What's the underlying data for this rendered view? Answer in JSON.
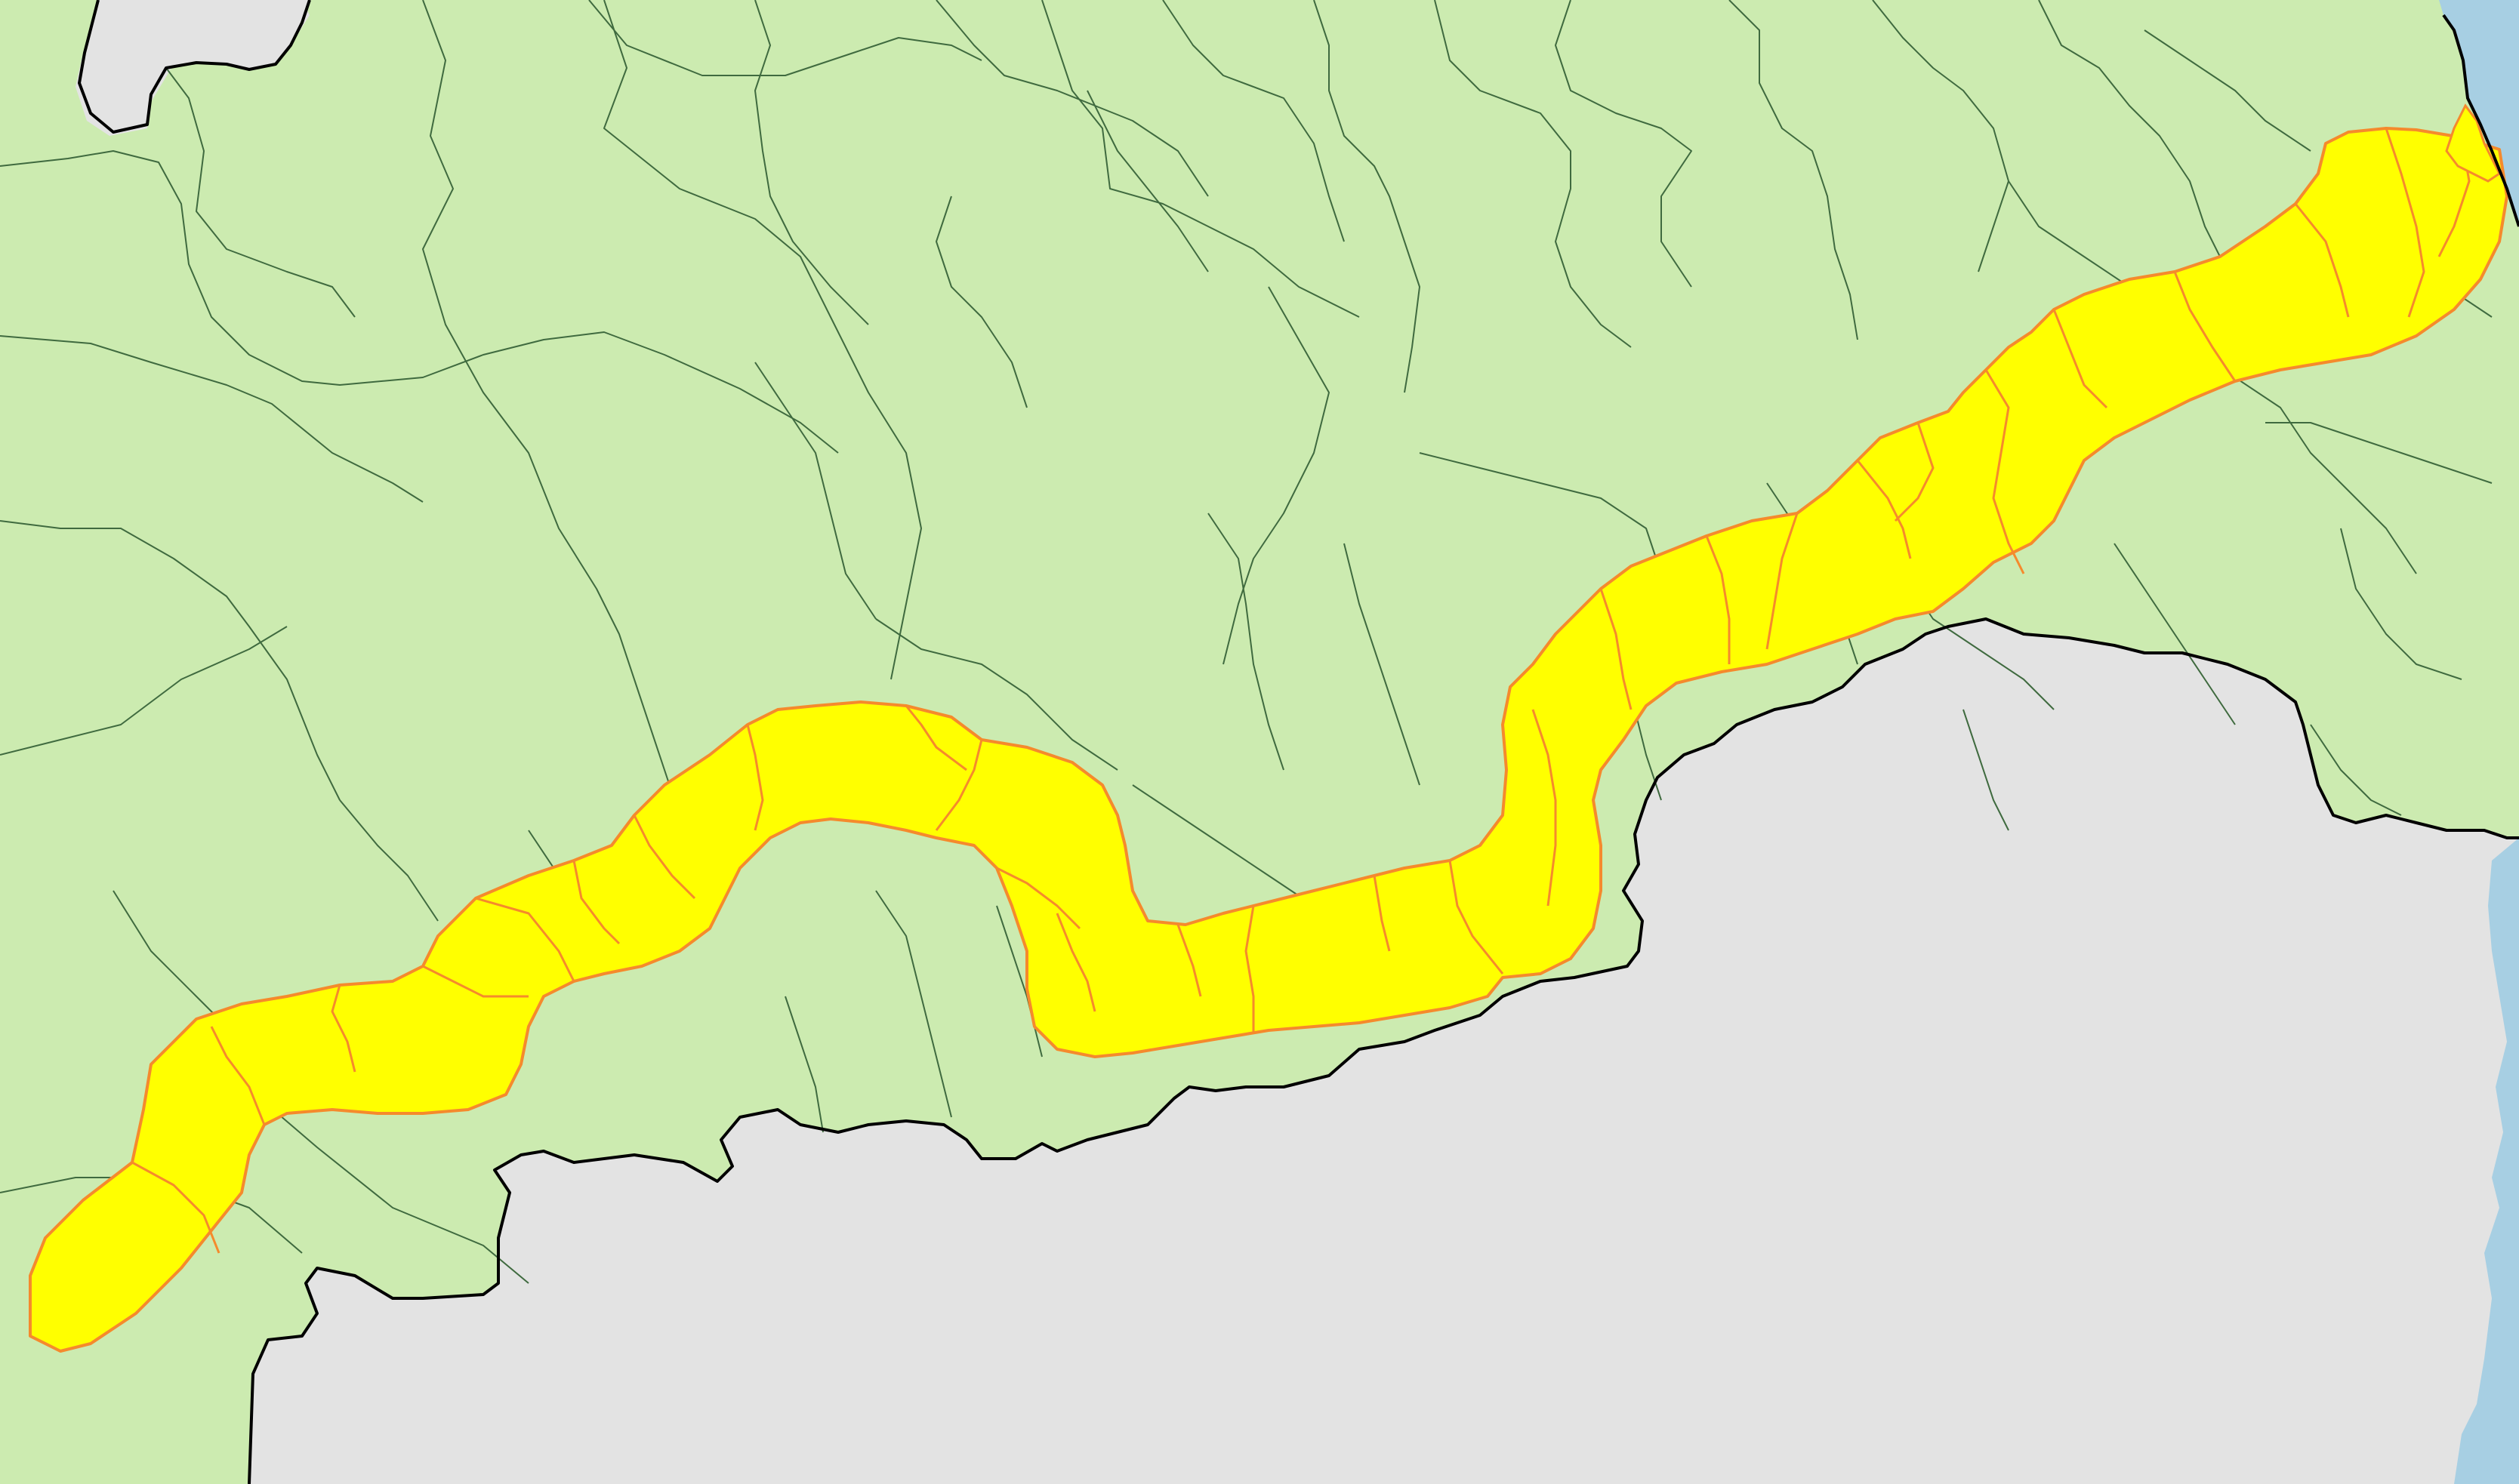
{
  "map": {
    "type": "choropleth-region-map",
    "labels_visible": false,
    "colors": {
      "land": "#ccebb0",
      "highlight": "#ffff00",
      "highlight_border": "#f58a2c",
      "neighbor_land": "#e3e3e3",
      "water": "#a7cfe3",
      "municipal_border": "#3f6a3f",
      "coastline": "#000000"
    },
    "layers": [
      {
        "name": "water",
        "icon": "water-area"
      },
      {
        "name": "neighbor-territory",
        "icon": "gray-area"
      },
      {
        "name": "municipalities",
        "icon": "green-polygons"
      },
      {
        "name": "highlighted-corridor",
        "icon": "yellow-band"
      }
    ]
  }
}
